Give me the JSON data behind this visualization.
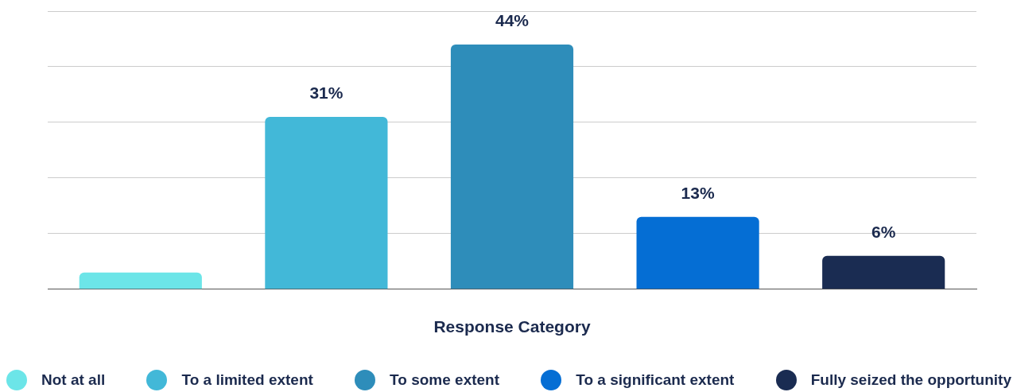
{
  "chart_data": {
    "type": "bar",
    "xlabel": "Response Category",
    "categories": [
      "Not at all",
      "To a limited extent",
      "To some extent",
      "To a significant extent",
      "Fully seized the opportunity"
    ],
    "values": [
      3,
      31,
      44,
      13,
      6
    ],
    "colors": [
      "#6ce5e8",
      "#42b8d8",
      "#2e8dba",
      "#056ed4",
      "#1a2c52"
    ],
    "value_labels": [
      null,
      "31%",
      "44%",
      "13%",
      "6%"
    ],
    "ylim": [
      0,
      50
    ],
    "yticks": [
      {
        "value": 0,
        "label": null
      },
      {
        "value": 10,
        "label": null
      },
      {
        "value": 20,
        "label": null
      },
      {
        "value": 30,
        "label": null
      },
      {
        "value": 40,
        "label": null
      },
      {
        "value": 50,
        "label": null
      }
    ],
    "grid": "y",
    "tick_labels": "x"
  }
}
